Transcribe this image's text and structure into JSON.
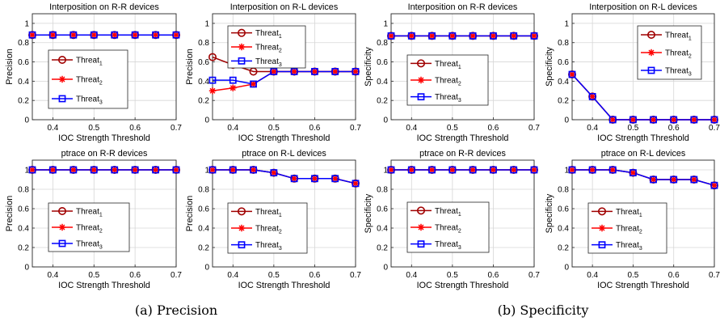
{
  "captions": [
    "(a) Precision",
    "(b) Specificity"
  ],
  "legend_items": [
    {
      "base": "Threat",
      "sub": "1",
      "color": "#a00000",
      "marker": "circle"
    },
    {
      "base": "Threat",
      "sub": "2",
      "color": "#ff0000",
      "marker": "star"
    },
    {
      "base": "Threat",
      "sub": "3",
      "color": "#0000ff",
      "marker": "square"
    }
  ],
  "chart_data": [
    {
      "type": "line",
      "title": "Interposition on R-R devices",
      "xlabel": "IOC Strength Threshold",
      "ylabel": "Precision",
      "xlim": [
        0.35,
        0.7
      ],
      "ylim": [
        0,
        1.1
      ],
      "xticks": [
        "0.4",
        "0.5",
        "0.6",
        "0.7"
      ],
      "yticks": [
        "0",
        "0.2",
        "0.4",
        "0.6",
        "0.8",
        "1"
      ],
      "grid": true,
      "legend_position": "lower-center",
      "x": [
        0.35,
        0.4,
        0.45,
        0.5,
        0.55,
        0.6,
        0.65,
        0.7
      ],
      "series": [
        {
          "name": "Threat_1",
          "values": [
            0.88,
            0.88,
            0.88,
            0.88,
            0.88,
            0.88,
            0.88,
            0.88
          ]
        },
        {
          "name": "Threat_2",
          "values": [
            0.88,
            0.88,
            0.88,
            0.88,
            0.88,
            0.88,
            0.88,
            0.88
          ]
        },
        {
          "name": "Threat_3",
          "values": [
            0.88,
            0.88,
            0.88,
            0.88,
            0.88,
            0.88,
            0.88,
            0.88
          ]
        }
      ]
    },
    {
      "type": "line",
      "title": "Interposition on R-L devices",
      "xlabel": "IOC Strength Threshold",
      "ylabel": "Precision",
      "xlim": [
        0.35,
        0.7
      ],
      "ylim": [
        0,
        1.1
      ],
      "xticks": [
        "0.4",
        "0.5",
        "0.6",
        "0.7"
      ],
      "yticks": [
        "0",
        "0.2",
        "0.4",
        "0.6",
        "0.8",
        "1"
      ],
      "grid": true,
      "legend_position": "top-left",
      "x": [
        0.35,
        0.4,
        0.45,
        0.5,
        0.55,
        0.6,
        0.65,
        0.7
      ],
      "series": [
        {
          "name": "Threat_1",
          "values": [
            0.65,
            0.57,
            0.5,
            0.5,
            0.5,
            0.5,
            0.5,
            0.5
          ]
        },
        {
          "name": "Threat_2",
          "values": [
            0.3,
            0.33,
            0.37,
            0.5,
            0.5,
            0.5,
            0.5,
            0.5
          ]
        },
        {
          "name": "Threat_3",
          "values": [
            0.41,
            0.41,
            0.37,
            0.5,
            0.5,
            0.5,
            0.5,
            0.5
          ]
        }
      ]
    },
    {
      "type": "line",
      "title": "Interposition on R-R devices",
      "xlabel": "IOC Strength Threshold",
      "ylabel": "Specificity",
      "xlim": [
        0.35,
        0.7
      ],
      "ylim": [
        0,
        1.1
      ],
      "xticks": [
        "0.4",
        "0.5",
        "0.6",
        "0.7"
      ],
      "yticks": [
        "0",
        "0.2",
        "0.4",
        "0.6",
        "0.8",
        "1"
      ],
      "grid": true,
      "legend_position": "lower-center",
      "x": [
        0.35,
        0.4,
        0.45,
        0.5,
        0.55,
        0.6,
        0.65,
        0.7
      ],
      "series": [
        {
          "name": "Threat_1",
          "values": [
            0.87,
            0.87,
            0.87,
            0.87,
            0.87,
            0.87,
            0.87,
            0.87
          ]
        },
        {
          "name": "Threat_2",
          "values": [
            0.87,
            0.87,
            0.87,
            0.87,
            0.87,
            0.87,
            0.87,
            0.87
          ]
        },
        {
          "name": "Threat_3",
          "values": [
            0.87,
            0.87,
            0.87,
            0.87,
            0.87,
            0.87,
            0.87,
            0.87
          ]
        }
      ]
    },
    {
      "type": "line",
      "title": "Interposition on R-L devices",
      "xlabel": "IOC Strength Threshold",
      "ylabel": "Specificity",
      "xlim": [
        0.35,
        0.7
      ],
      "ylim": [
        0,
        1.1
      ],
      "xticks": [
        "0.4",
        "0.5",
        "0.6",
        "0.7"
      ],
      "yticks": [
        "0",
        "0.2",
        "0.4",
        "0.6",
        "0.8",
        "1"
      ],
      "grid": true,
      "legend_position": "top-right",
      "x": [
        0.35,
        0.4,
        0.45,
        0.5,
        0.55,
        0.6,
        0.65,
        0.7
      ],
      "series": [
        {
          "name": "Threat_1",
          "values": [
            0.47,
            0.24,
            0.0,
            0.0,
            0.0,
            0.0,
            0.0,
            0.0
          ]
        },
        {
          "name": "Threat_2",
          "values": [
            0.47,
            0.24,
            0.0,
            0.0,
            0.0,
            0.0,
            0.0,
            0.0
          ]
        },
        {
          "name": "Threat_3",
          "values": [
            0.47,
            0.24,
            0.0,
            0.0,
            0.0,
            0.0,
            0.0,
            0.0
          ]
        }
      ]
    },
    {
      "type": "line",
      "title": "ptrace on R-R devices",
      "xlabel": "IOC Strength Threshold",
      "ylabel": "Precision",
      "xlim": [
        0.35,
        0.7
      ],
      "ylim": [
        0,
        1.1
      ],
      "xticks": [
        "0.4",
        "0.5",
        "0.6",
        "0.7"
      ],
      "yticks": [
        "0",
        "0.2",
        "0.4",
        "0.6",
        "0.8",
        "1"
      ],
      "grid": true,
      "legend_position": "lower-center",
      "x": [
        0.35,
        0.4,
        0.45,
        0.5,
        0.55,
        0.6,
        0.65,
        0.7
      ],
      "series": [
        {
          "name": "Threat_1",
          "values": [
            1,
            1,
            1,
            1,
            1,
            1,
            1,
            1
          ]
        },
        {
          "name": "Threat_2",
          "values": [
            1,
            1,
            1,
            1,
            1,
            1,
            1,
            1
          ]
        },
        {
          "name": "Threat_3",
          "values": [
            1,
            1,
            1,
            1,
            1,
            1,
            1,
            1
          ]
        }
      ]
    },
    {
      "type": "line",
      "title": "ptrace on R-L devices",
      "xlabel": "IOC Strength Threshold",
      "ylabel": "Precision",
      "xlim": [
        0.35,
        0.7
      ],
      "ylim": [
        0,
        1.1
      ],
      "xticks": [
        "0.4",
        "0.5",
        "0.6",
        "0.7"
      ],
      "yticks": [
        "0",
        "0.2",
        "0.4",
        "0.6",
        "0.8",
        "1"
      ],
      "grid": true,
      "legend_position": "lower-center",
      "x": [
        0.35,
        0.4,
        0.45,
        0.5,
        0.55,
        0.6,
        0.65,
        0.7
      ],
      "series": [
        {
          "name": "Threat_1",
          "values": [
            1,
            1,
            1,
            0.97,
            0.91,
            0.91,
            0.91,
            0.86
          ]
        },
        {
          "name": "Threat_2",
          "values": [
            1,
            1,
            1,
            0.97,
            0.91,
            0.91,
            0.91,
            0.86
          ]
        },
        {
          "name": "Threat_3",
          "values": [
            1,
            1,
            1,
            0.97,
            0.91,
            0.91,
            0.91,
            0.86
          ]
        }
      ]
    },
    {
      "type": "line",
      "title": "ptrace on R-R devices",
      "xlabel": "IOC Strength Threshold",
      "ylabel": "Specificity",
      "xlim": [
        0.35,
        0.7
      ],
      "ylim": [
        0,
        1.1
      ],
      "xticks": [
        "0.4",
        "0.5",
        "0.6",
        "0.7"
      ],
      "yticks": [
        "0",
        "0.2",
        "0.4",
        "0.6",
        "0.8",
        "1"
      ],
      "grid": true,
      "legend_position": "lower-center",
      "x": [
        0.35,
        0.4,
        0.45,
        0.5,
        0.55,
        0.6,
        0.65,
        0.7
      ],
      "series": [
        {
          "name": "Threat_1",
          "values": [
            1,
            1,
            1,
            1,
            1,
            1,
            1,
            1
          ]
        },
        {
          "name": "Threat_2",
          "values": [
            1,
            1,
            1,
            1,
            1,
            1,
            1,
            1
          ]
        },
        {
          "name": "Threat_3",
          "values": [
            1,
            1,
            1,
            1,
            1,
            1,
            1,
            1
          ]
        }
      ]
    },
    {
      "type": "line",
      "title": "ptrace on R-L devices",
      "xlabel": "IOC Strength Threshold",
      "ylabel": "Specificity",
      "xlim": [
        0.35,
        0.7
      ],
      "ylim": [
        0,
        1.1
      ],
      "xticks": [
        "0.4",
        "0.5",
        "0.6",
        "0.7"
      ],
      "yticks": [
        "0",
        "0.2",
        "0.4",
        "0.6",
        "0.8",
        "1"
      ],
      "grid": true,
      "legend_position": "lower-center",
      "x": [
        0.35,
        0.4,
        0.45,
        0.5,
        0.55,
        0.6,
        0.65,
        0.7
      ],
      "series": [
        {
          "name": "Threat_1",
          "values": [
            1,
            1,
            1,
            0.97,
            0.9,
            0.9,
            0.9,
            0.84
          ]
        },
        {
          "name": "Threat_2",
          "values": [
            1,
            1,
            1,
            0.97,
            0.9,
            0.9,
            0.9,
            0.84
          ]
        },
        {
          "name": "Threat_3",
          "values": [
            1,
            1,
            1,
            0.97,
            0.9,
            0.9,
            0.9,
            0.84
          ]
        }
      ]
    }
  ]
}
